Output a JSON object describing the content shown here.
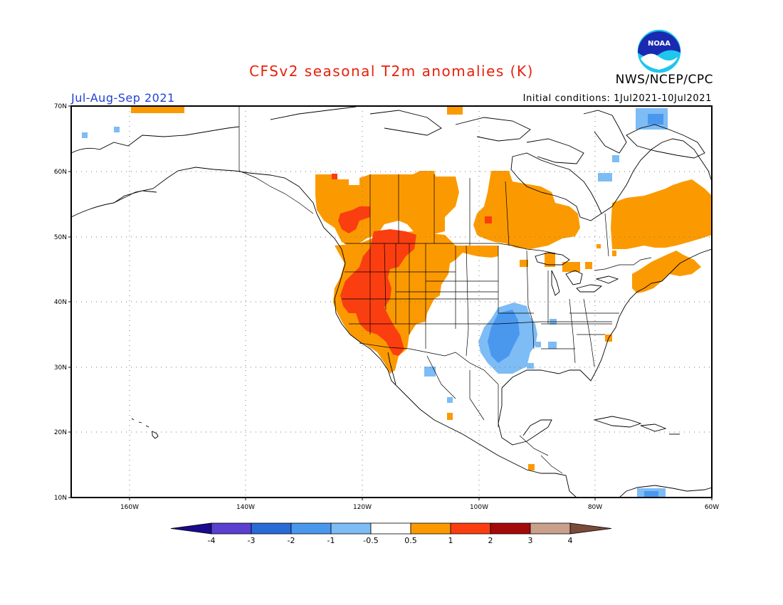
{
  "title": "CFSv2 seasonal T2m anomalies (K)",
  "agency": "NWS/NCEP/CPC",
  "logo_text": "NOAA",
  "season": "Jul-Aug-Sep 2021",
  "initial_conditions": "Initial conditions:  1Jul2021-10Jul2021",
  "lat_labels": [
    "70N",
    "60N",
    "50N",
    "40N",
    "30N",
    "20N",
    "10N"
  ],
  "lon_labels": [
    "160W",
    "140W",
    "120W",
    "100W",
    "80W",
    "60W"
  ],
  "colorbar": {
    "labels": [
      "-4",
      "-3",
      "-2",
      "-1",
      "-0.5",
      "0.5",
      "1",
      "2",
      "3",
      "4"
    ],
    "colors": [
      "#1a0a8c",
      "#5a3fd0",
      "#2a6ad6",
      "#4a98ee",
      "#7dbcf5",
      "#ffffff",
      "#fb9a00",
      "#fb3e10",
      "#a40a0a",
      "#c9a08c",
      "#7a4a3a"
    ]
  },
  "anomaly_colors": {
    "warm_0_5_1": "#fb9a00",
    "warm_1_2": "#fb3e10",
    "cool_neg1_neg0_5": "#7dbcf5",
    "cool_neg2_neg1": "#4a98ee"
  }
}
